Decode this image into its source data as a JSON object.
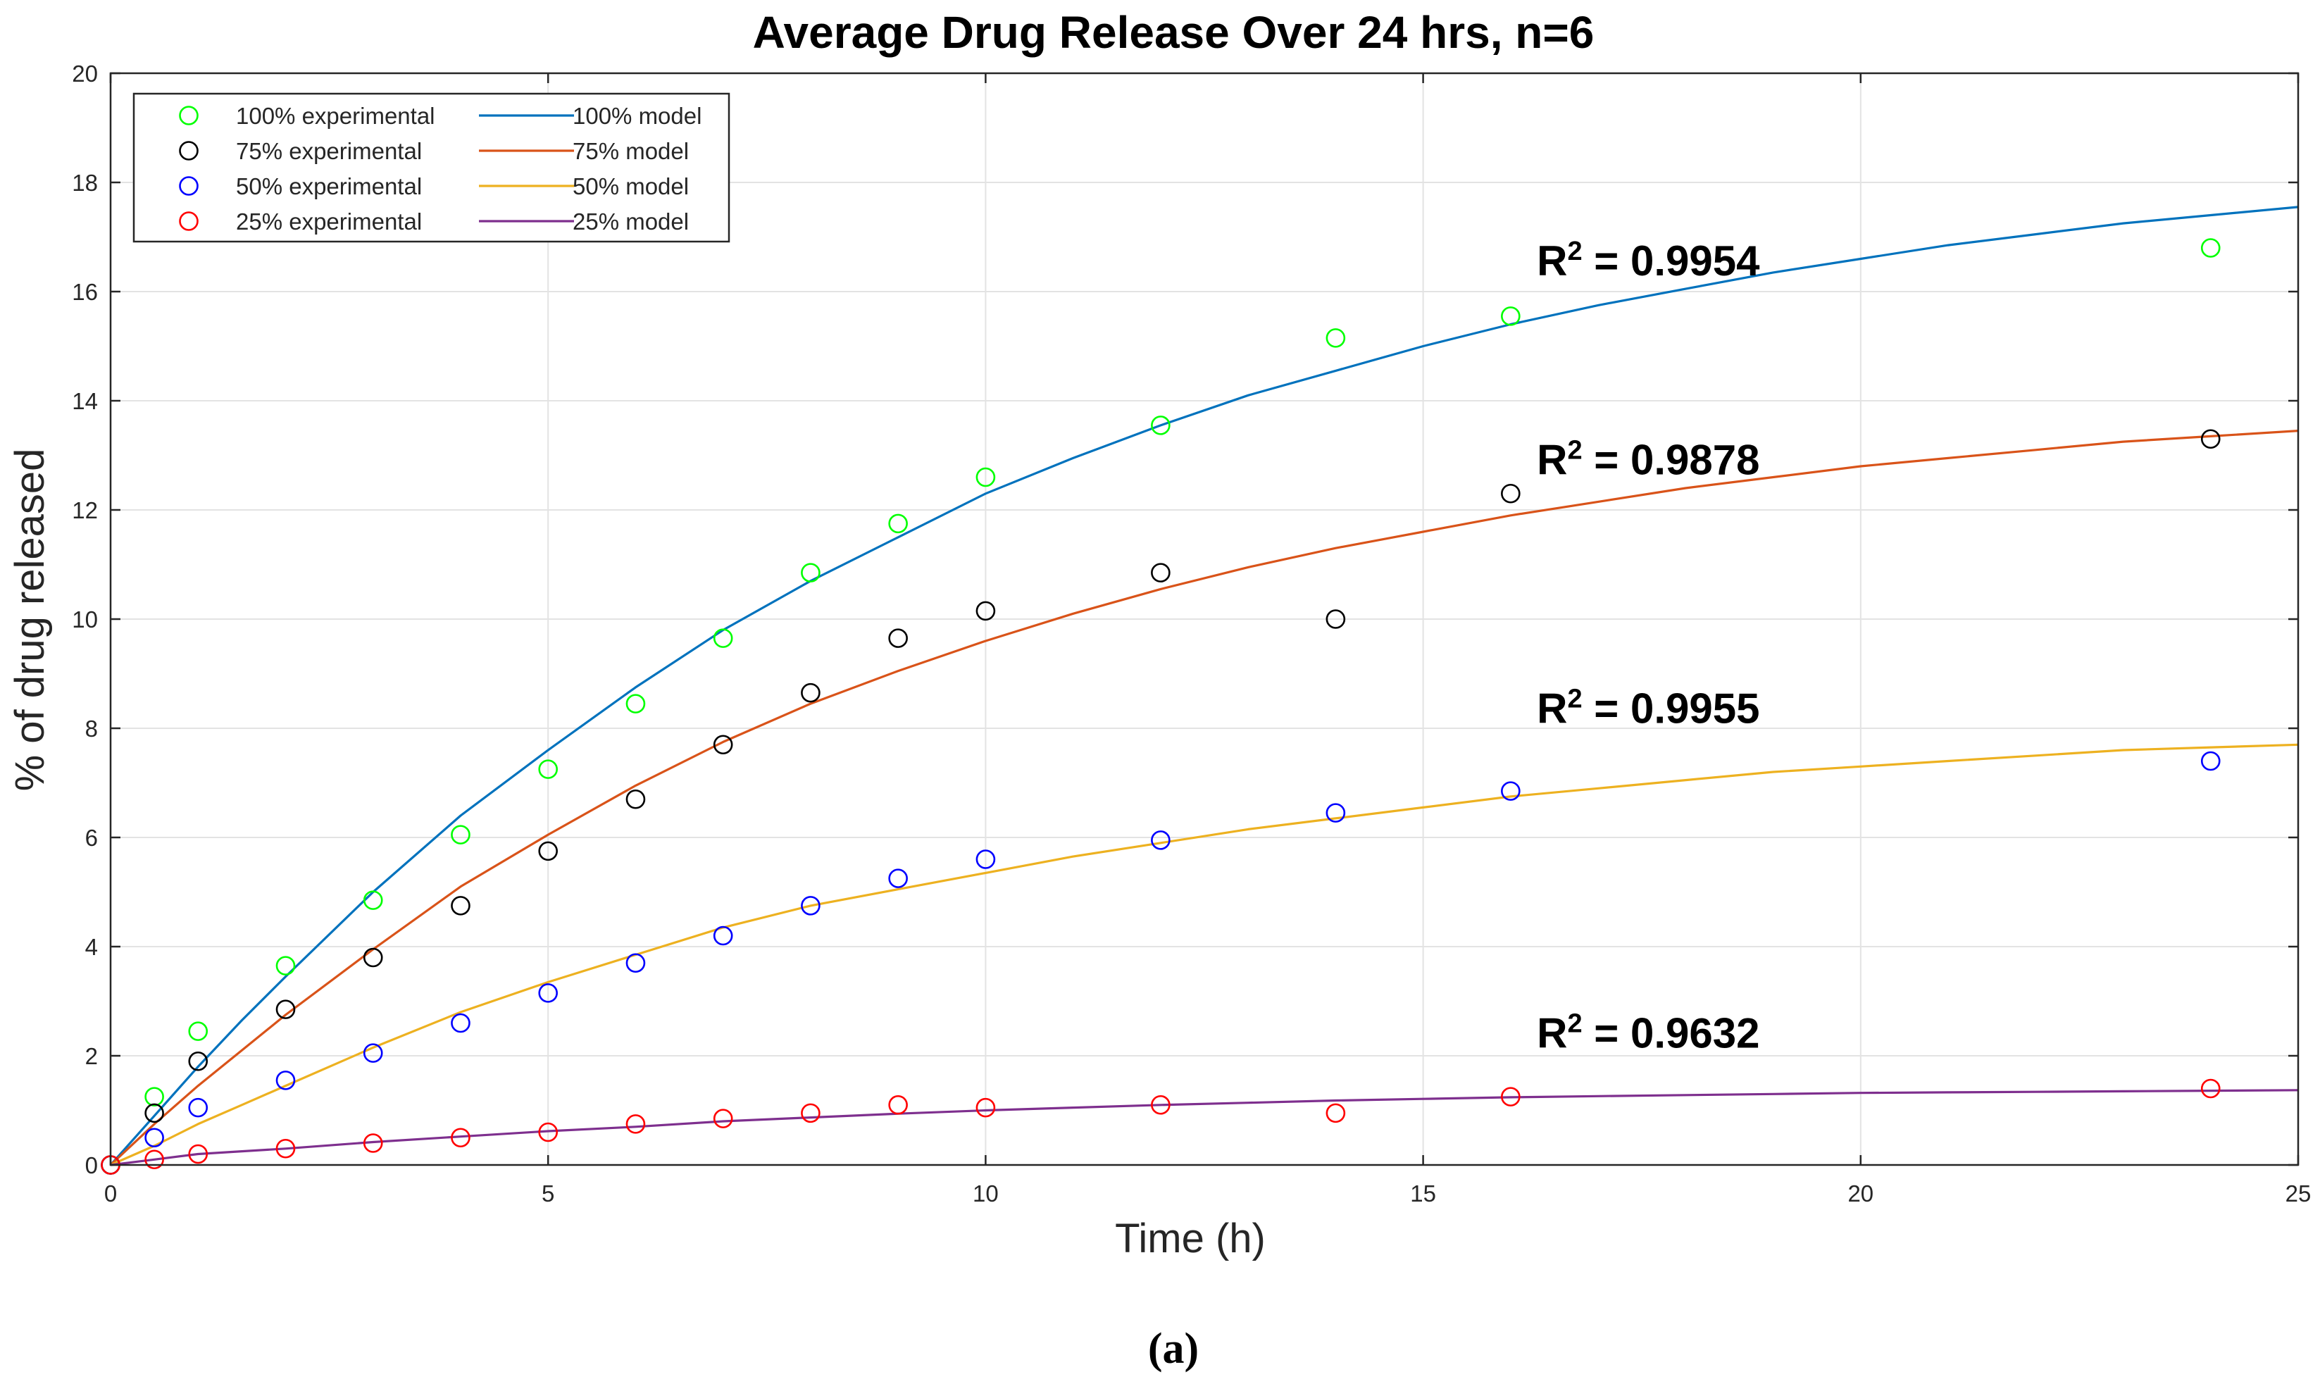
{
  "chart_data": {
    "type": "scatter",
    "title": "Average Drug Release Over 24 hrs, n=6",
    "xlabel": "Time (h)",
    "ylabel": "% of drug released",
    "xlim": [
      0,
      25
    ],
    "ylim": [
      0,
      20
    ],
    "x_ticks": [
      0,
      5,
      10,
      15,
      20,
      25
    ],
    "y_ticks": [
      0,
      2,
      4,
      6,
      8,
      10,
      12,
      14,
      16,
      18,
      20
    ],
    "grid": true,
    "legend_position": "top-left",
    "caption": "(a)",
    "experimental": [
      {
        "name": "100% experimental",
        "color": "#00ff00",
        "x": [
          0,
          0.5,
          1,
          2,
          3,
          4,
          5,
          6,
          7,
          8,
          9,
          10,
          12,
          14,
          16,
          24
        ],
        "y": [
          0,
          1.25,
          2.45,
          3.65,
          4.85,
          6.05,
          7.25,
          8.45,
          9.65,
          10.85,
          11.75,
          12.6,
          13.55,
          15.15,
          15.55,
          16.8
        ]
      },
      {
        "name": "75% experimental",
        "color": "#000000",
        "x": [
          0,
          0.5,
          1,
          2,
          3,
          4,
          5,
          6,
          7,
          8,
          9,
          10,
          12,
          14,
          16,
          24
        ],
        "y": [
          0,
          0.95,
          1.9,
          2.85,
          3.8,
          4.75,
          5.75,
          6.7,
          7.7,
          8.65,
          9.65,
          10.15,
          10.85,
          10.0,
          12.3,
          13.3
        ]
      },
      {
        "name": "50% experimental",
        "color": "#0000ff",
        "x": [
          0,
          0.5,
          1,
          2,
          3,
          4,
          5,
          6,
          7,
          8,
          9,
          10,
          12,
          14,
          16,
          24
        ],
        "y": [
          0,
          0.5,
          1.05,
          1.55,
          2.05,
          2.6,
          3.15,
          3.7,
          4.2,
          4.75,
          5.25,
          5.6,
          5.95,
          6.45,
          6.85,
          7.4
        ]
      },
      {
        "name": "25% experimental",
        "color": "#ff0000",
        "x": [
          0,
          0.5,
          1,
          2,
          3,
          4,
          5,
          6,
          7,
          8,
          9,
          10,
          12,
          14,
          16,
          24
        ],
        "y": [
          0,
          0.1,
          0.2,
          0.3,
          0.4,
          0.5,
          0.6,
          0.75,
          0.85,
          0.95,
          1.1,
          1.05,
          1.1,
          0.95,
          1.25,
          1.4
        ]
      }
    ],
    "models": [
      {
        "name": "100% model",
        "color": "#0072bd",
        "x": [
          0,
          0.5,
          1,
          1.5,
          2,
          3,
          4,
          5,
          6,
          7,
          8,
          9,
          10,
          11,
          12,
          13,
          14,
          15,
          16,
          17,
          18,
          19,
          20,
          21,
          22,
          23,
          24,
          25
        ],
        "y": [
          0,
          0.9,
          1.8,
          2.65,
          3.45,
          5.0,
          6.4,
          7.6,
          8.75,
          9.8,
          10.7,
          11.5,
          12.3,
          12.95,
          13.55,
          14.1,
          14.55,
          15.0,
          15.4,
          15.75,
          16.05,
          16.35,
          16.6,
          16.85,
          17.05,
          17.25,
          17.4,
          17.55
        ]
      },
      {
        "name": "75% model",
        "color": "#d95319",
        "x": [
          0,
          0.5,
          1,
          1.5,
          2,
          3,
          4,
          5,
          6,
          7,
          8,
          9,
          10,
          11,
          12,
          13,
          14,
          15,
          16,
          17,
          18,
          19,
          20,
          21,
          22,
          23,
          24,
          25
        ],
        "y": [
          0,
          0.75,
          1.45,
          2.1,
          2.75,
          3.95,
          5.1,
          6.05,
          6.95,
          7.75,
          8.45,
          9.05,
          9.6,
          10.1,
          10.55,
          10.95,
          11.3,
          11.6,
          11.9,
          12.15,
          12.4,
          12.6,
          12.8,
          12.95,
          13.1,
          13.25,
          13.35,
          13.45
        ]
      },
      {
        "name": "50% model",
        "color": "#edb120",
        "x": [
          0,
          0.5,
          1,
          1.5,
          2,
          3,
          4,
          5,
          6,
          7,
          8,
          9,
          10,
          11,
          12,
          13,
          14,
          15,
          16,
          17,
          18,
          19,
          20,
          21,
          22,
          23,
          24,
          25
        ],
        "y": [
          0,
          0.35,
          0.75,
          1.1,
          1.45,
          2.15,
          2.8,
          3.35,
          3.85,
          4.35,
          4.75,
          5.05,
          5.35,
          5.65,
          5.9,
          6.15,
          6.35,
          6.55,
          6.75,
          6.9,
          7.05,
          7.2,
          7.3,
          7.4,
          7.5,
          7.6,
          7.65,
          7.7
        ]
      },
      {
        "name": "25% model",
        "color": "#7e2f8e",
        "x": [
          0,
          0.5,
          1,
          1.5,
          2,
          3,
          4,
          5,
          6,
          7,
          8,
          9,
          10,
          11,
          12,
          13,
          14,
          15,
          16,
          17,
          18,
          19,
          20,
          21,
          22,
          23,
          24,
          25
        ],
        "y": [
          0,
          0.1,
          0.2,
          0.25,
          0.3,
          0.42,
          0.52,
          0.62,
          0.7,
          0.8,
          0.87,
          0.94,
          1.0,
          1.05,
          1.1,
          1.14,
          1.18,
          1.21,
          1.24,
          1.26,
          1.28,
          1.3,
          1.32,
          1.33,
          1.34,
          1.35,
          1.36,
          1.37
        ]
      }
    ],
    "annotations": [
      {
        "base": "R",
        "sup": "2",
        "value": " = 0.9954",
        "x": 16.3,
        "y": 16.3
      },
      {
        "base": "R",
        "sup": "2",
        "value": " = 0.9878",
        "x": 16.3,
        "y": 12.65
      },
      {
        "base": "R",
        "sup": "2",
        "value": " = 0.9955",
        "x": 16.3,
        "y": 8.1
      },
      {
        "base": "R",
        "sup": "2",
        "value": " = 0.9632",
        "x": 16.3,
        "y": 2.15
      }
    ]
  }
}
